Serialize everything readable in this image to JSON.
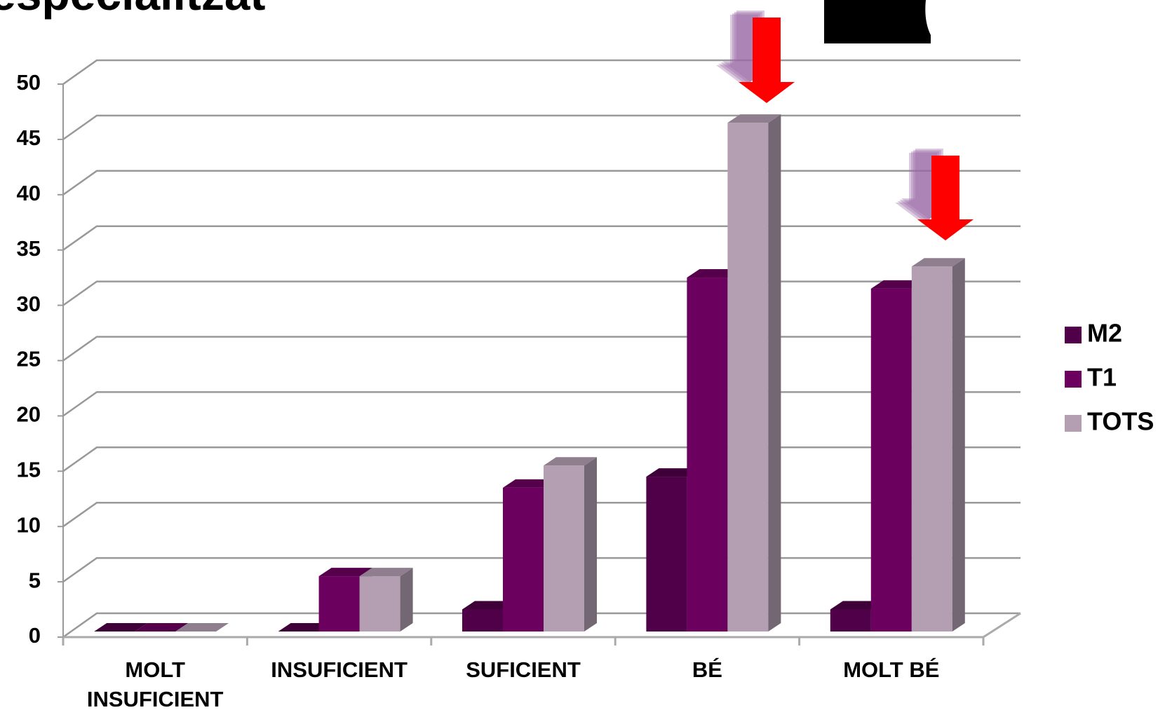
{
  "chart_data": {
    "type": "bar3d",
    "title": "especialitzat",
    "categories": [
      "MOLT INSUFICIENT",
      "INSUFICIENT",
      "SUFICIENT",
      "BÉ",
      "MOLT BÉ"
    ],
    "series": [
      {
        "name": "M2",
        "color": "#4f0048",
        "values": [
          0,
          0,
          2,
          14,
          2
        ]
      },
      {
        "name": "T1",
        "color": "#6b005f",
        "values": [
          0,
          5,
          13,
          32,
          31
        ]
      },
      {
        "name": "TOTS",
        "color": "#b39eb2",
        "values": [
          0,
          5,
          15,
          46,
          33
        ]
      }
    ],
    "ylim": [
      0,
      50
    ],
    "yticks": [
      0,
      5,
      10,
      15,
      20,
      25,
      30,
      35,
      40,
      45,
      50
    ],
    "grid": true,
    "legend": "right"
  }
}
